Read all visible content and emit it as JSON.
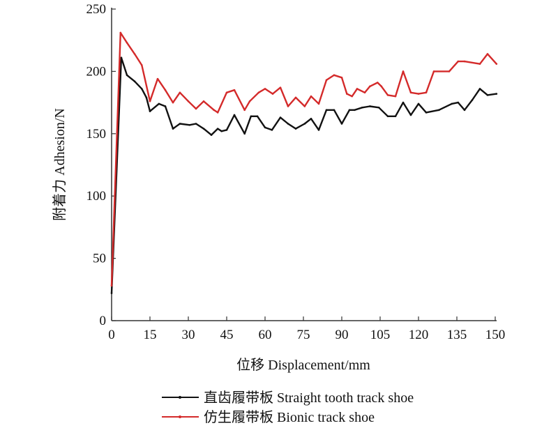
{
  "chart_data": {
    "type": "line",
    "title": "",
    "xlabel": "位移 Displacement/mm",
    "ylabel": "附着力 Adhesion/N",
    "xlim": [
      0,
      150
    ],
    "ylim": [
      0,
      250
    ],
    "xticks": [
      0,
      15,
      30,
      45,
      60,
      75,
      90,
      105,
      120,
      135,
      150
    ],
    "yticks": [
      0,
      50,
      100,
      150,
      200,
      250
    ],
    "grid": false,
    "legend_position": "bottom",
    "series": [
      {
        "name": "直齿履带板 Straight tooth track shoe",
        "color": "#111111",
        "x": [
          0,
          3.8,
          6,
          9,
          11.8,
          13.6,
          15,
          18.5,
          21,
          24,
          26.7,
          30.5,
          33,
          36,
          39,
          41.5,
          43,
          45,
          48,
          52,
          54.5,
          57,
          60,
          62.7,
          66,
          69,
          72,
          75.5,
          78,
          81,
          84,
          87,
          90,
          93,
          95,
          98,
          101,
          104.5,
          108,
          111,
          114,
          117,
          120,
          123,
          128,
          133,
          135.5,
          138,
          141,
          144,
          147,
          150.5
        ],
        "y": [
          22,
          211,
          197,
          192,
          186,
          179,
          168,
          174,
          172,
          154,
          158,
          157,
          158,
          154,
          149,
          154,
          152,
          153,
          165,
          150,
          164,
          164,
          155,
          153,
          163,
          158,
          154,
          158,
          162,
          153,
          169,
          169,
          158,
          169,
          169,
          171,
          172,
          171,
          164,
          164,
          175,
          165,
          174,
          167,
          169,
          174,
          175,
          169,
          177,
          186,
          181,
          182
        ]
      },
      {
        "name": "仿生履带板 Bionic track shoe",
        "color": "#d42a2a",
        "x": [
          0,
          3.5,
          6,
          9,
          11.8,
          15,
          18,
          21,
          24,
          26.7,
          30,
          33,
          36,
          40,
          41.5,
          45,
          48,
          52,
          54,
          57.5,
          60,
          63,
          66,
          69,
          72,
          75.5,
          78,
          81,
          84,
          87,
          90,
          92,
          94,
          96,
          99,
          101,
          104,
          105.5,
          108,
          111,
          114,
          117,
          120,
          123,
          126,
          132,
          135.5,
          138,
          144,
          147,
          150.5
        ],
        "y": [
          28,
          231,
          223,
          214,
          205,
          176,
          194,
          185,
          175,
          183,
          176,
          170,
          176,
          169,
          167,
          183,
          185,
          169,
          176,
          183,
          186,
          182,
          187,
          172,
          179,
          172,
          180,
          174,
          193,
          197,
          195,
          182,
          180,
          186,
          183,
          188,
          191,
          188,
          181,
          180,
          200,
          183,
          182,
          183,
          200,
          200,
          208,
          208,
          206,
          214,
          206
        ]
      }
    ]
  }
}
